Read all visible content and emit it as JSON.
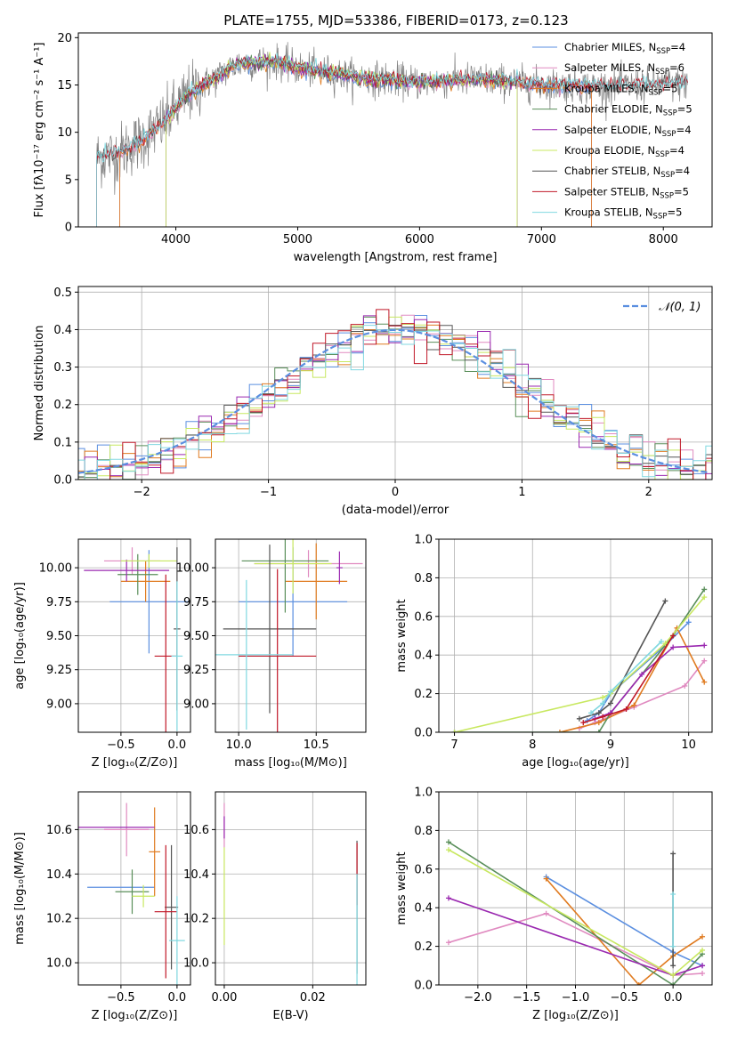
{
  "figure": {
    "title": "PLATE=1755, MJD=53386, FIBERID=0173, z=0.123"
  },
  "colors": {
    "chab_miles": "#5b8fe0",
    "salp_miles": "#e08ac0",
    "krou_miles": "#e07b20",
    "chab_elodie": "#5a8f5a",
    "salp_elodie": "#9a28b0",
    "krou_elodie": "#c8e860",
    "chab_stelib": "#555555",
    "salp_stelib": "#c01828",
    "krou_stelib": "#80d8e0",
    "data": "#808080",
    "normal": "#5b8fe0"
  },
  "chart_data": [
    {
      "id": "spectrum",
      "type": "line",
      "xlabel": "wavelength [Angstrom, rest frame]",
      "ylabel": "Flux [fλ10⁻¹⁷ erg cm⁻² s⁻¹ A⁻¹]",
      "xlim": [
        3200,
        8400
      ],
      "ylim": [
        0,
        20.5
      ],
      "xticks": [
        4000,
        5000,
        6000,
        7000,
        8000
      ],
      "yticks": [
        0,
        5,
        10,
        15,
        20
      ],
      "continuum": {
        "x": [
          3350,
          3500,
          3700,
          3900,
          4000,
          4100,
          4300,
          4500,
          4800,
          5000,
          5500,
          6000,
          6500,
          7000,
          7500,
          8000,
          8200
        ],
        "y": [
          7.3,
          7.6,
          9.0,
          11.0,
          12.5,
          14.0,
          15.5,
          17.2,
          17.5,
          16.8,
          15.8,
          15.3,
          15.6,
          15.0,
          14.8,
          15.0,
          15.2
        ]
      },
      "legend": [
        {
          "label": "Chabrier MILES, N",
          "sub": "SSP",
          "suffix": "=4",
          "color": "chab_miles"
        },
        {
          "label": "Salpeter MILES, N",
          "sub": "SSP",
          "suffix": "=6",
          "color": "salp_miles"
        },
        {
          "label": "Kroupa MILES, N",
          "sub": "SSP",
          "suffix": "=5",
          "color": "krou_miles"
        },
        {
          "label": "Chabrier ELODIE, N",
          "sub": "SSP",
          "suffix": "=5",
          "color": "chab_elodie"
        },
        {
          "label": "Salpeter ELODIE, N",
          "sub": "SSP",
          "suffix": "=4",
          "color": "salp_elodie"
        },
        {
          "label": "Kroupa ELODIE, N",
          "sub": "SSP",
          "suffix": "=4",
          "color": "krou_elodie"
        },
        {
          "label": "Chabrier STELIB, N",
          "sub": "SSP",
          "suffix": "=4",
          "color": "chab_stelib"
        },
        {
          "label": "Salpeter STELIB, N",
          "sub": "SSP",
          "suffix": "=5",
          "color": "salp_stelib"
        },
        {
          "label": "Kroupa STELIB, N",
          "sub": "SSP",
          "suffix": "=5",
          "color": "krou_stelib"
        }
      ]
    },
    {
      "id": "residuals",
      "type": "histogram",
      "xlabel": "(data-model)/error",
      "ylabel": "Normed distribution",
      "xlim": [
        -2.5,
        2.5
      ],
      "ylim": [
        0,
        0.515
      ],
      "xticks": [
        -2,
        -1,
        0,
        1,
        2
      ],
      "yticks": [
        0.0,
        0.1,
        0.2,
        0.3,
        0.4,
        0.5
      ],
      "bin_width": 0.1,
      "grid": true,
      "legend": [
        {
          "label": "𝒩(0, 1)",
          "color": "normal"
        }
      ]
    },
    {
      "id": "age_vs_Z",
      "type": "errorbar",
      "xlabel": "Z [log₁₀(Z/Z⊙)]",
      "ylabel": "age  [log₁₀(age/yr)]",
      "xlim": [
        -0.88,
        0.12
      ],
      "ylim": [
        8.79,
        10.21
      ],
      "xticks": [
        -0.5,
        0.0
      ],
      "yticks": [
        9.0,
        9.25,
        9.5,
        9.75,
        10.0
      ],
      "grid": true,
      "points": [
        {
          "c": "chab_miles",
          "x": -0.25,
          "y": 9.75,
          "xe": 0.35,
          "ye": 0.38
        },
        {
          "c": "salp_miles",
          "x": -0.4,
          "y": 10.05,
          "xe": 0.25,
          "ye": 0.1
        },
        {
          "c": "krou_miles",
          "x": -0.28,
          "y": 9.9,
          "xe": 0.22,
          "ye": 0.15
        },
        {
          "c": "chab_elodie",
          "x": -0.35,
          "y": 9.95,
          "xe": 0.18,
          "ye": 0.15
        },
        {
          "c": "salp_elodie",
          "x": -0.45,
          "y": 9.98,
          "xe": 0.38,
          "ye": 0.08
        },
        {
          "c": "krou_elodie",
          "x": -0.25,
          "y": 10.05,
          "xe": 0.25,
          "ye": 0.05
        },
        {
          "c": "chab_stelib",
          "x": 0.0,
          "y": 9.55,
          "xe": 0.03,
          "ye": 0.6
        },
        {
          "c": "salp_stelib",
          "x": -0.1,
          "y": 9.35,
          "xe": 0.1,
          "ye": 0.6
        },
        {
          "c": "krou_stelib",
          "x": 0.0,
          "y": 9.35,
          "xe": 0.05,
          "ye": 0.55
        }
      ]
    },
    {
      "id": "age_vs_mass",
      "type": "errorbar",
      "xlabel": "mass [log₁₀(M/M⊙)]",
      "ylabel": "",
      "xlim": [
        9.85,
        10.82
      ],
      "ylim": [
        8.79,
        10.21
      ],
      "xticks": [
        10.0,
        10.5
      ],
      "yticks": [
        9.0,
        9.25,
        9.5,
        9.75,
        10.0
      ],
      "grid": true,
      "points": [
        {
          "c": "chab_miles",
          "x": 10.35,
          "y": 9.75,
          "xe": 0.35,
          "ye": 0.4
        },
        {
          "c": "salp_miles",
          "x": 10.45,
          "y": 10.03,
          "xe": 0.35,
          "ye": 0.1
        },
        {
          "c": "krou_miles",
          "x": 10.5,
          "y": 9.9,
          "xe": 0.2,
          "ye": 0.28
        },
        {
          "c": "chab_elodie",
          "x": 10.3,
          "y": 10.05,
          "xe": 0.28,
          "ye": 0.38
        },
        {
          "c": "salp_elodie",
          "x": 10.65,
          "y": 10.0,
          "xe": 0.02,
          "ye": 0.12
        },
        {
          "c": "krou_elodie",
          "x": 10.35,
          "y": 10.03,
          "xe": 0.25,
          "ye": 0.22
        },
        {
          "c": "chab_stelib",
          "x": 10.2,
          "y": 9.55,
          "xe": 0.3,
          "ye": 0.62
        },
        {
          "c": "salp_stelib",
          "x": 10.25,
          "y": 9.35,
          "xe": 0.25,
          "ye": 0.64
        },
        {
          "c": "krou_stelib",
          "x": 10.05,
          "y": 9.36,
          "xe": 0.3,
          "ye": 0.55
        }
      ]
    },
    {
      "id": "mass_weight_vs_age",
      "type": "line",
      "xlabel": "age  [log₁₀(age/yr)]",
      "ylabel": "mass weight",
      "xlim": [
        6.8,
        10.3
      ],
      "ylim": [
        0,
        1.0
      ],
      "xticks": [
        7,
        8,
        9,
        10
      ],
      "yticks": [
        0.0,
        0.2,
        0.4,
        0.6,
        0.8,
        1.0
      ],
      "grid": true,
      "series": [
        {
          "c": "chab_miles",
          "x": [
            8.7,
            8.85,
            9.0,
            9.7,
            10.0
          ],
          "y": [
            0.06,
            0.1,
            0.2,
            0.45,
            0.57
          ]
        },
        {
          "c": "salp_miles",
          "x": [
            8.6,
            8.8,
            9.3,
            9.95,
            10.2
          ],
          "y": [
            0.02,
            0.05,
            0.13,
            0.24,
            0.37
          ]
        },
        {
          "c": "krou_miles",
          "x": [
            8.35,
            8.85,
            9.3,
            9.85,
            10.2
          ],
          "y": [
            0.0,
            0.05,
            0.14,
            0.54,
            0.26
          ]
        },
        {
          "c": "chab_elodie",
          "x": [
            7.0,
            8.85,
            9.0,
            9.8,
            10.2
          ],
          "y": [
            0.0,
            0.0,
            0.1,
            0.5,
            0.74
          ]
        },
        {
          "c": "salp_elodie",
          "x": [
            8.8,
            9.0,
            9.4,
            9.8,
            10.2
          ],
          "y": [
            0.07,
            0.1,
            0.3,
            0.44,
            0.45
          ]
        },
        {
          "c": "krou_elodie",
          "x": [
            7.0,
            8.9,
            9.0,
            9.7,
            10.2
          ],
          "y": [
            0.0,
            0.18,
            0.2,
            0.46,
            0.7
          ]
        },
        {
          "c": "chab_stelib",
          "x": [
            8.6,
            8.85,
            9.0,
            9.7
          ],
          "y": [
            0.07,
            0.1,
            0.15,
            0.68
          ]
        },
        {
          "c": "salp_stelib",
          "x": [
            8.65,
            8.9,
            9.2,
            9.8
          ],
          "y": [
            0.05,
            0.08,
            0.12,
            0.5
          ]
        },
        {
          "c": "krou_stelib",
          "x": [
            8.75,
            8.9,
            9.0,
            9.65
          ],
          "y": [
            0.1,
            0.15,
            0.21,
            0.47
          ]
        }
      ]
    },
    {
      "id": "mass_vs_Z",
      "type": "errorbar",
      "xlabel": "Z [log₁₀(Z/Z⊙)]",
      "ylabel": "mass [log₁₀(M/M⊙)]",
      "xlim": [
        -0.88,
        0.12
      ],
      "ylim": [
        9.9,
        10.77
      ],
      "xticks": [
        -0.5,
        0.0
      ],
      "yticks": [
        10.0,
        10.2,
        10.4,
        10.6
      ],
      "grid": true,
      "points": [
        {
          "c": "chab_miles",
          "x": -0.5,
          "y": 10.34,
          "xe": 0.3,
          "ye": 0.0
        },
        {
          "c": "salp_miles",
          "x": -0.45,
          "y": 10.6,
          "xe": 0.2,
          "ye": 0.12
        },
        {
          "c": "krou_miles",
          "x": -0.2,
          "y": 10.5,
          "xe": 0.05,
          "ye": 0.2
        },
        {
          "c": "chab_elodie",
          "x": -0.4,
          "y": 10.32,
          "xe": 0.15,
          "ye": 0.1
        },
        {
          "c": "salp_elodie",
          "x": -0.6,
          "y": 10.61,
          "xe": 0.4,
          "ye": 0.0
        },
        {
          "c": "krou_elodie",
          "x": -0.3,
          "y": 10.3,
          "xe": 0.1,
          "ye": 0.05
        },
        {
          "c": "chab_stelib",
          "x": -0.05,
          "y": 10.25,
          "xe": 0.06,
          "ye": 0.28
        },
        {
          "c": "salp_stelib",
          "x": -0.1,
          "y": 10.23,
          "xe": 0.1,
          "ye": 0.3
        },
        {
          "c": "krou_stelib",
          "x": 0.0,
          "y": 10.1,
          "xe": 0.07,
          "ye": 0.2
        }
      ]
    },
    {
      "id": "mass_vs_ebv",
      "type": "errorbar",
      "xlabel": "E(B-V)",
      "ylabel": "",
      "xlim": [
        -0.002,
        0.032
      ],
      "ylim": [
        9.9,
        10.77
      ],
      "xticks": [
        0.0,
        0.02
      ],
      "yticks": [
        10.0,
        10.2,
        10.4,
        10.6
      ],
      "grid": true,
      "points": [
        {
          "c": "salp_miles",
          "x": 0.0,
          "y": 10.62,
          "xe": 0.0,
          "ye": 0.1
        },
        {
          "c": "salp_elodie",
          "x": 0.0,
          "y": 10.61,
          "xe": 0.0,
          "ye": 0.05
        },
        {
          "c": "krou_elodie",
          "x": 0.0,
          "y": 10.3,
          "xe": 0.0,
          "ye": 0.22
        },
        {
          "c": "chab_stelib",
          "x": 0.03,
          "y": 10.25,
          "xe": 0.0,
          "ye": 0.3
        },
        {
          "c": "salp_stelib",
          "x": 0.03,
          "y": 10.4,
          "xe": 0.0,
          "ye": 0.14
        },
        {
          "c": "krou_stelib",
          "x": 0.03,
          "y": 10.15,
          "xe": 0.0,
          "ye": 0.25
        }
      ]
    },
    {
      "id": "mass_weight_vs_Z",
      "type": "line",
      "xlabel": "Z [log₁₀(Z/Z⊙)]",
      "ylabel": "mass weight",
      "xlim": [
        -2.4,
        0.4
      ],
      "ylim": [
        0,
        1.0
      ],
      "xticks": [
        -2.0,
        -1.5,
        -1.0,
        -0.5,
        0.0
      ],
      "yticks": [
        0.0,
        0.2,
        0.4,
        0.6,
        0.8,
        1.0
      ],
      "grid": true,
      "series": [
        {
          "c": "chab_miles",
          "x": [
            -1.3,
            0.0,
            0.3
          ],
          "y": [
            0.56,
            0.17,
            0.1
          ]
        },
        {
          "c": "salp_miles",
          "x": [
            -2.3,
            -1.3,
            0.0,
            0.3
          ],
          "y": [
            0.22,
            0.37,
            0.05,
            0.06
          ]
        },
        {
          "c": "krou_miles",
          "x": [
            -1.3,
            -0.35,
            0.0,
            0.3
          ],
          "y": [
            0.55,
            0.0,
            0.15,
            0.25
          ]
        },
        {
          "c": "chab_elodie",
          "x": [
            -2.3,
            0.0,
            0.3
          ],
          "y": [
            0.74,
            0.0,
            0.16
          ]
        },
        {
          "c": "salp_elodie",
          "x": [
            -2.3,
            0.0,
            0.3
          ],
          "y": [
            0.45,
            0.05,
            0.1
          ]
        },
        {
          "c": "krou_elodie",
          "x": [
            -2.3,
            0.0,
            0.3
          ],
          "y": [
            0.7,
            0.05,
            0.18
          ]
        },
        {
          "c": "chab_stelib",
          "x": [
            0.0,
            0.0
          ],
          "y": [
            0.68,
            0.1
          ]
        },
        {
          "c": "krou_stelib",
          "x": [
            0.0,
            0.0
          ],
          "y": [
            0.47,
            0.2
          ]
        }
      ]
    }
  ]
}
